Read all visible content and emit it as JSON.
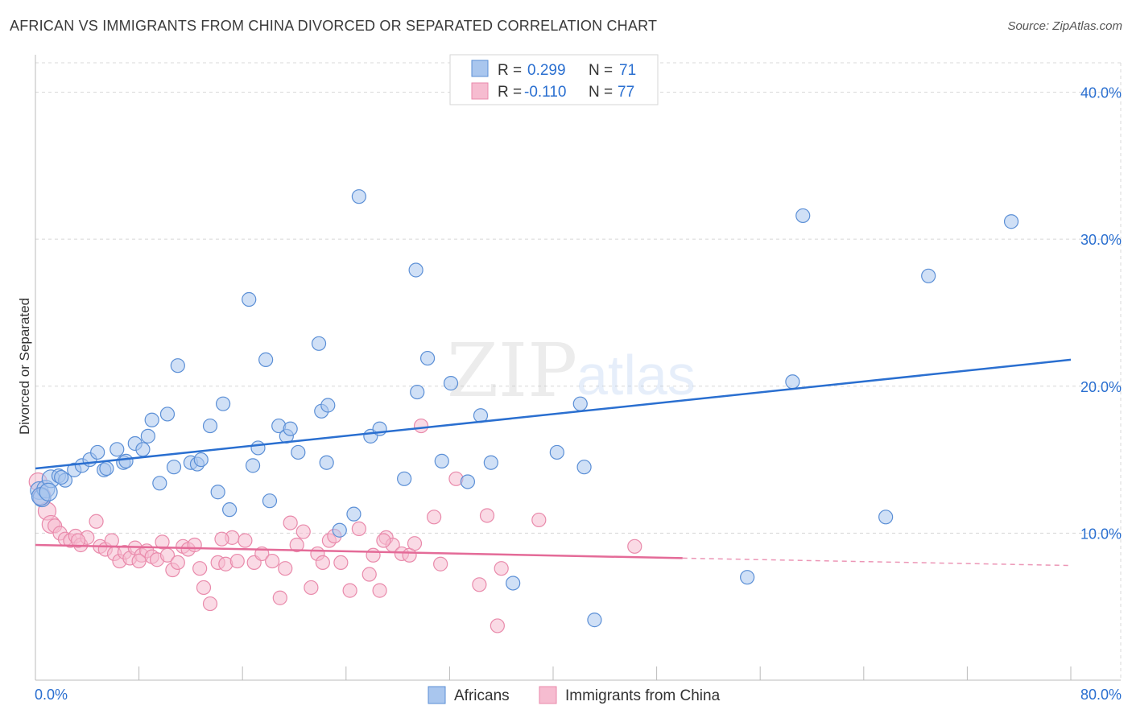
{
  "header": {
    "title": "AFRICAN VS IMMIGRANTS FROM CHINA DIVORCED OR SEPARATED CORRELATION CHART",
    "source": "Source: ZipAtlas.com"
  },
  "watermark": {
    "zip": "ZIP",
    "atlas": "atlas"
  },
  "colors": {
    "blue": "#5b8fd6",
    "blue_fill": "#a9c6ee",
    "blue_line": "#2a6fd0",
    "pink": "#e98aab",
    "pink_fill": "#f6bcd0",
    "pink_line": "#e46b98",
    "value_text": "#2a6fd0",
    "grid": "#d8d8d8"
  },
  "legend": {
    "rows": [
      {
        "r_label": "R = ",
        "r_value": "0.299",
        "n_label": "N = ",
        "n_value": "71"
      },
      {
        "r_label": "R = ",
        "r_value": "-0.110",
        "n_label": "N = ",
        "n_value": "77"
      }
    ]
  },
  "bottom_legend": [
    {
      "label": "Africans"
    },
    {
      "label": "Immigrants from China"
    }
  ],
  "chart_data": {
    "type": "scatter",
    "title": "AFRICAN VS IMMIGRANTS FROM CHINA DIVORCED OR SEPARATED CORRELATION CHART",
    "xlabel": "",
    "ylabel": "Divorced or Separated",
    "xlim": [
      0,
      80
    ],
    "ylim": [
      0,
      42
    ],
    "x_tick_labels": [
      "0.0%",
      "80.0%"
    ],
    "y_ticks": [
      10,
      20,
      30,
      40
    ],
    "y_tick_labels": [
      "10.0%",
      "20.0%",
      "30.0%",
      "40.0%"
    ],
    "grid": true,
    "series": [
      {
        "name": "Africans",
        "r": 0.299,
        "n": 71,
        "trend": {
          "x0": 0,
          "y0": 14.4,
          "x1": 80,
          "y1": 21.8
        },
        "points": [
          [
            0.3,
            12.9
          ],
          [
            0.5,
            12.4
          ],
          [
            0.8,
            13.0
          ],
          [
            1.2,
            13.7
          ],
          [
            1.8,
            13.9
          ],
          [
            2.3,
            13.6
          ],
          [
            3.0,
            14.3
          ],
          [
            3.6,
            14.6
          ],
          [
            4.2,
            15.0
          ],
          [
            4.8,
            15.5
          ],
          [
            5.3,
            14.3
          ],
          [
            5.5,
            14.4
          ],
          [
            6.3,
            15.7
          ],
          [
            6.8,
            14.8
          ],
          [
            7.0,
            14.9
          ],
          [
            7.7,
            16.1
          ],
          [
            8.3,
            15.7
          ],
          [
            8.7,
            16.6
          ],
          [
            9.0,
            17.7
          ],
          [
            9.6,
            13.4
          ],
          [
            10.2,
            18.1
          ],
          [
            10.7,
            14.5
          ],
          [
            11.0,
            21.4
          ],
          [
            12.0,
            14.8
          ],
          [
            12.5,
            14.7
          ],
          [
            12.8,
            15.0
          ],
          [
            13.5,
            17.3
          ],
          [
            14.1,
            12.8
          ],
          [
            14.5,
            18.8
          ],
          [
            15.0,
            11.6
          ],
          [
            16.5,
            25.9
          ],
          [
            16.8,
            14.6
          ],
          [
            17.2,
            15.8
          ],
          [
            17.8,
            21.8
          ],
          [
            18.1,
            12.2
          ],
          [
            18.8,
            17.3
          ],
          [
            19.4,
            16.6
          ],
          [
            19.7,
            17.1
          ],
          [
            20.3,
            15.5
          ],
          [
            21.9,
            22.9
          ],
          [
            22.5,
            14.8
          ],
          [
            22.1,
            18.3
          ],
          [
            22.6,
            18.7
          ],
          [
            23.5,
            10.2
          ],
          [
            24.6,
            11.3
          ],
          [
            25.0,
            32.9
          ],
          [
            25.9,
            16.6
          ],
          [
            26.6,
            17.1
          ],
          [
            28.5,
            13.7
          ],
          [
            29.5,
            19.6
          ],
          [
            29.4,
            27.9
          ],
          [
            30.3,
            21.9
          ],
          [
            31.4,
            14.9
          ],
          [
            32.1,
            20.2
          ],
          [
            33.4,
            13.5
          ],
          [
            34.4,
            18.0
          ],
          [
            35.2,
            14.8
          ],
          [
            36.9,
            6.6
          ],
          [
            40.3,
            15.5
          ],
          [
            42.1,
            18.8
          ],
          [
            42.4,
            14.5
          ],
          [
            43.2,
            4.1
          ],
          [
            55.0,
            7.0
          ],
          [
            58.5,
            20.3
          ],
          [
            59.3,
            31.6
          ],
          [
            65.7,
            11.1
          ],
          [
            69.0,
            27.5
          ],
          [
            75.4,
            31.2
          ],
          [
            0.4,
            12.5
          ],
          [
            1.0,
            12.8
          ],
          [
            2.0,
            13.8
          ]
        ]
      },
      {
        "name": "Immigrants from China",
        "r": -0.11,
        "n": 77,
        "trend": {
          "x0": 0,
          "y0": 9.2,
          "x1": 50,
          "y1": 8.3,
          "dash_x1": 80,
          "dash_y1": 7.8
        },
        "points": [
          [
            0.2,
            13.5
          ],
          [
            0.5,
            12.5
          ],
          [
            0.9,
            11.5
          ],
          [
            1.2,
            10.6
          ],
          [
            1.5,
            10.5
          ],
          [
            1.9,
            10.0
          ],
          [
            2.3,
            9.6
          ],
          [
            2.7,
            9.5
          ],
          [
            3.1,
            9.8
          ],
          [
            3.5,
            9.2
          ],
          [
            4.0,
            9.7
          ],
          [
            4.7,
            10.8
          ],
          [
            5.0,
            9.1
          ],
          [
            5.4,
            8.9
          ],
          [
            5.9,
            9.5
          ],
          [
            6.1,
            8.6
          ],
          [
            6.5,
            8.1
          ],
          [
            6.9,
            8.7
          ],
          [
            7.3,
            8.3
          ],
          [
            7.7,
            9.0
          ],
          [
            8.2,
            8.5
          ],
          [
            8.6,
            8.8
          ],
          [
            9.0,
            8.4
          ],
          [
            9.4,
            8.2
          ],
          [
            9.8,
            9.4
          ],
          [
            10.2,
            8.5
          ],
          [
            10.6,
            7.5
          ],
          [
            11.0,
            8.0
          ],
          [
            11.4,
            9.1
          ],
          [
            11.8,
            8.9
          ],
          [
            12.3,
            9.2
          ],
          [
            12.7,
            7.6
          ],
          [
            13.0,
            6.3
          ],
          [
            13.5,
            5.2
          ],
          [
            14.1,
            8.0
          ],
          [
            14.7,
            7.9
          ],
          [
            15.2,
            9.7
          ],
          [
            15.6,
            8.1
          ],
          [
            16.2,
            9.5
          ],
          [
            16.9,
            8.0
          ],
          [
            17.5,
            8.6
          ],
          [
            18.3,
            8.1
          ],
          [
            18.9,
            5.6
          ],
          [
            19.3,
            7.6
          ],
          [
            19.7,
            10.7
          ],
          [
            20.2,
            9.2
          ],
          [
            20.7,
            10.1
          ],
          [
            21.3,
            6.3
          ],
          [
            21.8,
            8.6
          ],
          [
            22.2,
            8.0
          ],
          [
            22.7,
            9.5
          ],
          [
            23.1,
            9.8
          ],
          [
            23.6,
            8.0
          ],
          [
            24.3,
            6.1
          ],
          [
            25.0,
            10.3
          ],
          [
            25.8,
            7.2
          ],
          [
            26.1,
            8.5
          ],
          [
            26.6,
            6.1
          ],
          [
            27.1,
            9.7
          ],
          [
            27.6,
            9.2
          ],
          [
            28.3,
            8.6
          ],
          [
            28.9,
            8.5
          ],
          [
            29.3,
            9.3
          ],
          [
            29.8,
            17.3
          ],
          [
            30.8,
            11.1
          ],
          [
            31.3,
            7.9
          ],
          [
            32.5,
            13.7
          ],
          [
            34.3,
            6.5
          ],
          [
            34.9,
            11.2
          ],
          [
            35.7,
            3.7
          ],
          [
            36.0,
            7.6
          ],
          [
            38.9,
            10.9
          ],
          [
            46.3,
            9.1
          ],
          [
            3.3,
            9.5
          ],
          [
            8.0,
            8.1
          ],
          [
            14.4,
            9.6
          ],
          [
            26.9,
            9.5
          ]
        ]
      }
    ]
  }
}
